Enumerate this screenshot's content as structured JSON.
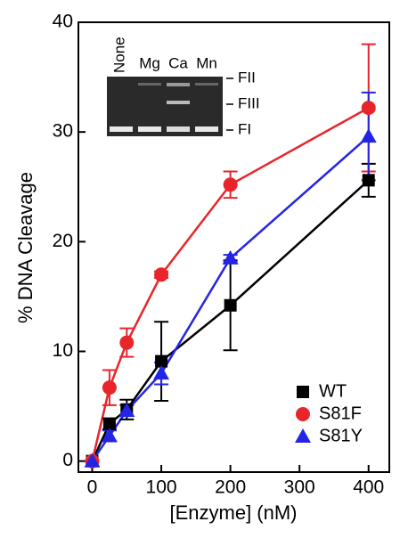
{
  "chart_data": {
    "type": "line",
    "x_label": "[Enzyme] (nM)",
    "y_label": "% DNA Cleavage",
    "x": [
      0,
      25,
      50,
      100,
      200,
      400
    ],
    "series": [
      {
        "name": "WT",
        "color": "#000000",
        "marker": "square",
        "values": [
          0,
          3.4,
          4.7,
          9.1,
          14.2,
          25.6
        ],
        "errors": [
          null,
          0.5,
          0.9,
          3.6,
          4.1,
          1.5
        ]
      },
      {
        "name": "S81F",
        "color": "#e8252a",
        "marker": "circle",
        "values": [
          0,
          6.7,
          10.8,
          17.0,
          25.2,
          32.2
        ],
        "errors": [
          null,
          1.6,
          1.3,
          0.3,
          1.2,
          5.8
        ]
      },
      {
        "name": "S81Y",
        "color": "#2424e6",
        "marker": "triangle",
        "values": [
          0,
          2.3,
          4.6,
          8.0,
          18.5,
          29.6
        ],
        "errors": [
          null,
          0.5,
          0.5,
          1.0,
          0.3,
          4.0
        ]
      }
    ],
    "xlim": [
      -20,
      430
    ],
    "ylim": [
      -1,
      40
    ],
    "xticks": [
      0,
      100,
      200,
      300,
      400
    ],
    "yticks": [
      0,
      10,
      20,
      30,
      40
    ],
    "legend": "lower right",
    "inset": {
      "lanes": [
        "None",
        "Mg",
        "Ca",
        "Mn"
      ],
      "bands": [
        "FII",
        "FIII",
        "FI"
      ]
    }
  }
}
